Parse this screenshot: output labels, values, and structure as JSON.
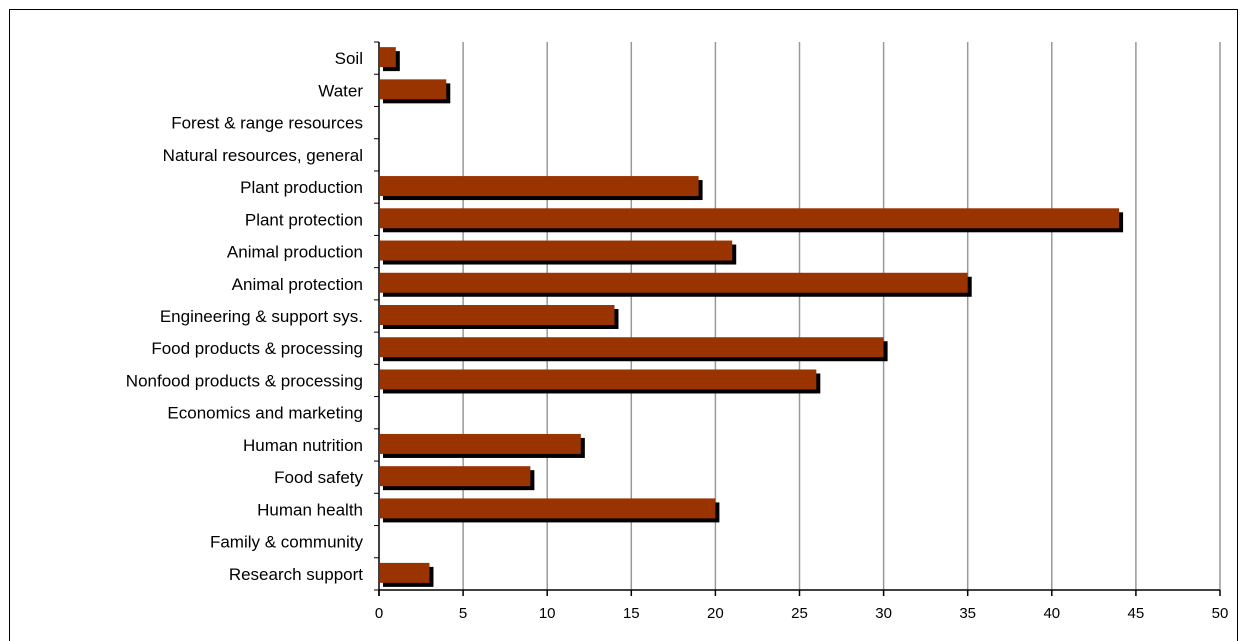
{
  "chart_data": {
    "type": "bar",
    "orientation": "horizontal",
    "categories": [
      "Soil",
      "Water",
      "Forest & range resources",
      "Natural resources, general",
      "Plant production",
      "Plant protection",
      "Animal production",
      "Animal protection",
      "Engineering & support sys.",
      "Food products & processing",
      "Nonfood products & processing",
      "Economics and marketing",
      "Human nutrition",
      "Food safety",
      "Human health",
      "Family & community",
      "Research support"
    ],
    "values": [
      1,
      4,
      0,
      0,
      19,
      44,
      21,
      35,
      14,
      30,
      26,
      0,
      12,
      9,
      20,
      0,
      3
    ],
    "x_ticks": [
      0,
      5,
      10,
      15,
      20,
      25,
      30,
      35,
      40,
      45,
      50
    ],
    "xlim": [
      0,
      50
    ],
    "grid": "vertical",
    "bar_color": "#993300",
    "shadow_color": "#000000",
    "title": "",
    "xlabel": "",
    "ylabel": ""
  }
}
